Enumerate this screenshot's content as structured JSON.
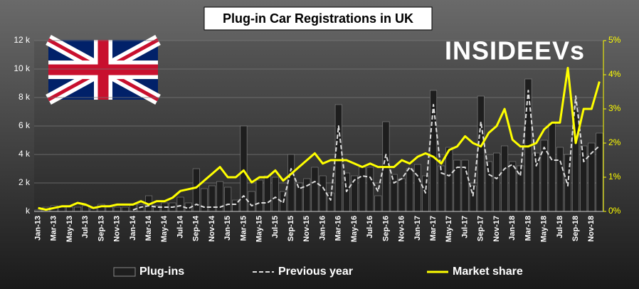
{
  "chart_data": {
    "type": "bar",
    "title": "Plug-in Car Registrations in UK",
    "logo": "INSIDEEVs",
    "categories": [
      "Jan-13",
      null,
      "Mar-13",
      null,
      "May-13",
      null,
      "Jul-13",
      null,
      "Sep-13",
      null,
      "Nov-13",
      null,
      "Jan-14",
      null,
      "Mar-14",
      null,
      "May-14",
      null,
      "Jul-14",
      null,
      "Sep-14",
      null,
      "Nov-14",
      null,
      "Jan-15",
      null,
      "Mar-15",
      null,
      "May-15",
      null,
      "Jul-15",
      null,
      "Sep-15",
      null,
      "Nov-15",
      null,
      "Jan-16",
      null,
      "Mar-16",
      null,
      "May-16",
      null,
      "Jul-16",
      null,
      "Sep-16",
      null,
      "Nov-16",
      null,
      "Jan-17",
      null,
      "Mar-17",
      null,
      "May-17",
      null,
      "Jul-17",
      null,
      "Sep-17",
      null,
      "Nov-17",
      null,
      "Jan-18",
      null,
      "Mar-18",
      null,
      "May-18",
      null,
      "Jul-18",
      null,
      "Sep-18",
      null,
      "Nov-18",
      null
    ],
    "series": [
      {
        "name": "Plug-ins",
        "color": "#1e1e1e",
        "values": [
          100,
          300,
          400,
          300,
          300,
          300,
          400,
          200,
          500,
          300,
          300,
          300,
          500,
          500,
          1100,
          400,
          600,
          600,
          1000,
          600,
          3000,
          1600,
          1800,
          2100,
          1700,
          800,
          6000,
          1400,
          2200,
          2500,
          2400,
          1400,
          4000,
          2000,
          2300,
          3100,
          2500,
          1300,
          7500,
          2700,
          2500,
          3100,
          3100,
          1100,
          6300,
          2600,
          2300,
          3000,
          3300,
          2500,
          8500,
          3200,
          4500,
          3600,
          3600,
          1800,
          8100,
          3500,
          4100,
          4600,
          3500,
          3200,
          9300,
          4100,
          5000,
          6200,
          4500,
          4000,
          7300,
          4600,
          4800,
          5500
        ]
      },
      {
        "name": "Previous year",
        "color": "#dddddd",
        "values": [
          null,
          null,
          null,
          null,
          null,
          null,
          null,
          null,
          null,
          null,
          null,
          null,
          100,
          300,
          400,
          300,
          300,
          300,
          400,
          200,
          500,
          300,
          300,
          300,
          500,
          500,
          1100,
          400,
          600,
          600,
          1000,
          600,
          3000,
          1600,
          1800,
          2100,
          1700,
          800,
          6000,
          1400,
          2200,
          2500,
          2400,
          1400,
          4000,
          2000,
          2300,
          3100,
          2500,
          1300,
          7500,
          2700,
          2500,
          3100,
          3100,
          1100,
          6300,
          2600,
          2300,
          3000,
          3300,
          2500,
          8500,
          3200,
          4500,
          3600,
          3600,
          1800,
          8100,
          3500,
          4100,
          4600
        ]
      },
      {
        "name": "Market share",
        "color": "#ffff00",
        "axis": "y2",
        "values": [
          0.1,
          0.05,
          0.1,
          0.15,
          0.15,
          0.25,
          0.2,
          0.1,
          0.15,
          0.15,
          0.2,
          0.2,
          0.2,
          0.3,
          0.2,
          0.3,
          0.3,
          0.4,
          0.6,
          0.65,
          0.7,
          0.9,
          1.1,
          1.3,
          1.0,
          1.0,
          1.2,
          0.85,
          1.0,
          1.0,
          1.2,
          0.9,
          1.1,
          1.3,
          1.5,
          1.7,
          1.4,
          1.5,
          1.5,
          1.5,
          1.4,
          1.3,
          1.4,
          1.3,
          1.3,
          1.3,
          1.5,
          1.4,
          1.6,
          1.7,
          1.6,
          1.4,
          1.8,
          1.9,
          2.2,
          2.0,
          1.9,
          2.3,
          2.5,
          3.0,
          2.1,
          1.9,
          1.9,
          2.0,
          2.4,
          2.6,
          2.6,
          4.2,
          2.0,
          3.0,
          3.0,
          3.8
        ]
      }
    ],
    "ylim": [
      0,
      12000
    ],
    "yticks": [
      {
        "value": 0,
        "label": "k"
      },
      {
        "value": 2000,
        "label": "2 k"
      },
      {
        "value": 4000,
        "label": "4 k"
      },
      {
        "value": 6000,
        "label": "6 k"
      },
      {
        "value": 8000,
        "label": "8 k"
      },
      {
        "value": 10000,
        "label": "10 k"
      },
      {
        "value": 12000,
        "label": "12 k"
      }
    ],
    "y2lim": [
      0,
      5
    ],
    "y2ticks": [
      {
        "value": 0,
        "label": "0%"
      },
      {
        "value": 1,
        "label": "1%"
      },
      {
        "value": 2,
        "label": "2%"
      },
      {
        "value": 3,
        "label": "3%"
      },
      {
        "value": 4,
        "label": "4%"
      },
      {
        "value": 5,
        "label": "5%"
      }
    ],
    "grid": true
  }
}
